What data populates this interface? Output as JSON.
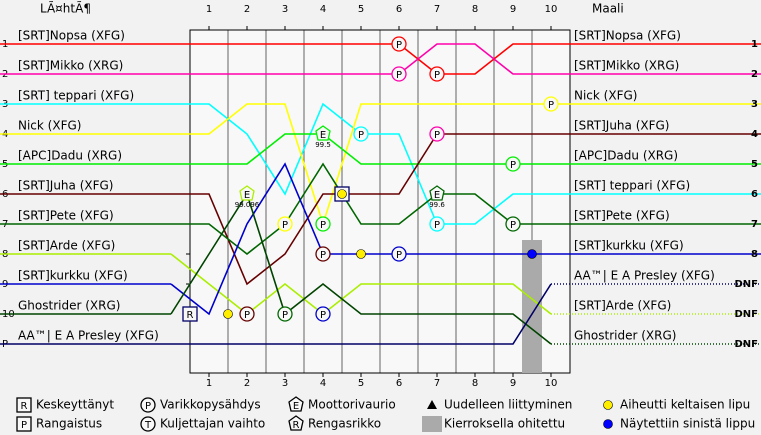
{
  "chart_data": {
    "type": "lap-chart",
    "start_header": "LÃ¤htÃ¶",
    "finish_header": "Maali",
    "xlim": [
      0.5,
      10.5
    ],
    "xticks": [
      1,
      2,
      3,
      4,
      5,
      6,
      7,
      8,
      9,
      10
    ],
    "ylim": [
      0.5,
      11.5
    ],
    "yticks": [
      1,
      2,
      3,
      4,
      5,
      6,
      7,
      8,
      9,
      10,
      {
        "value": 11,
        "label": "P"
      }
    ],
    "x": [
      0,
      1,
      2,
      3,
      4,
      5,
      6,
      7,
      8,
      9,
      10
    ],
    "series": [
      {
        "name": "[SRT]Nopsa (XFG)",
        "color": "#ff0000",
        "values": [
          1,
          1,
          1,
          1,
          1,
          1,
          1,
          2,
          2,
          1,
          1
        ]
      },
      {
        "name": "[SRT]Mikko (XRG)",
        "color": "#ff00aa",
        "values": [
          2,
          2,
          2,
          2,
          2,
          2,
          2,
          1,
          1,
          2,
          2
        ]
      },
      {
        "name": "[SRT] teppari (XFG)",
        "color": "#00ffff",
        "values": [
          3,
          3,
          4,
          6,
          3,
          4,
          4,
          7,
          7,
          6,
          6
        ]
      },
      {
        "name": "Nick (XFG)",
        "color": "#ffff00",
        "values": [
          4,
          4,
          3,
          3,
          7,
          3,
          3,
          3,
          3,
          3,
          3
        ]
      },
      {
        "name": "[APC]Dadu (XRG)",
        "color": "#00ee00",
        "values": [
          5,
          5,
          5,
          4,
          4,
          5,
          5,
          5,
          5,
          5,
          5
        ]
      },
      {
        "name": "[SRT]Juha (XFG)",
        "color": "#660000",
        "values": [
          6,
          6,
          9,
          8,
          6,
          6,
          6,
          4,
          4,
          4,
          4
        ]
      },
      {
        "name": "[SRT]Pete (XFG)",
        "color": "#006600",
        "values": [
          7,
          7,
          8,
          7,
          5,
          7,
          7,
          6,
          6,
          7,
          7
        ]
      },
      {
        "name": "[SRT]Arde (XFG)",
        "color": "#aaee00",
        "values": [
          8,
          9,
          10,
          9,
          10,
          9,
          9,
          9,
          9,
          9,
          10
        ]
      },
      {
        "name": "[SRT]kurkku (XFG)",
        "color": "#0000cc",
        "values": [
          9,
          10,
          7,
          5,
          8,
          8,
          8,
          8,
          8,
          8,
          8
        ]
      },
      {
        "name": "Ghostrider (XRG)",
        "color": "#004400",
        "values": [
          10,
          8,
          6,
          10,
          9,
          10,
          10,
          10,
          10,
          10,
          11
        ]
      },
      {
        "name": "AA™| E A Presley (XFG)",
        "color": "#000066",
        "values": [
          11,
          11,
          11,
          11,
          11,
          11,
          11,
          11,
          11,
          11,
          9
        ]
      }
    ],
    "finish_names": [
      "[SRT]Nopsa (XFG)",
      "[SRT]Mikko (XRG)",
      "Nick (XFG)",
      "[SRT]Juha (XFG)",
      "[APC]Dadu (XRG)",
      "[SRT] teppari (XFG)",
      "[SRT]Pete (XFG)",
      "[SRT]kurkku (XFG)",
      "AA™| E A Presley (XFG)",
      "[SRT]Arde (XFG)",
      "Ghostrider (XRG)"
    ],
    "finish_labels": [
      "1",
      "2",
      "3",
      "4",
      "5",
      "6",
      "7",
      "8",
      "DNF",
      "DNF",
      "DNF"
    ],
    "events": [
      {
        "symbol": "P",
        "shape": "circle",
        "lap": 6,
        "pos": 1,
        "color": "#ff0000"
      },
      {
        "symbol": "P",
        "shape": "circle",
        "lap": 6,
        "pos": 2,
        "color": "#ff00aa"
      },
      {
        "symbol": "P",
        "shape": "circle",
        "lap": 7,
        "pos": 2,
        "color": "#ff0000"
      },
      {
        "symbol": "P",
        "shape": "circle",
        "lap": 10,
        "pos": 3,
        "color": "#ffff00"
      },
      {
        "symbol": "P",
        "shape": "circle",
        "lap": 7,
        "pos": 4,
        "color": "#ff00aa"
      },
      {
        "symbol": "P",
        "shape": "circle",
        "lap": 5,
        "pos": 4,
        "color": "#00ffff"
      },
      {
        "symbol": "P",
        "shape": "circle",
        "lap": 9,
        "pos": 5,
        "color": "#00ee00"
      },
      {
        "symbol": "P",
        "shape": "circle",
        "lap": 7,
        "pos": 7,
        "color": "#00ffff"
      },
      {
        "symbol": "P",
        "shape": "circle",
        "lap": 9,
        "pos": 7,
        "color": "#006600"
      },
      {
        "symbol": "P",
        "shape": "circle",
        "lap": 3,
        "pos": 7,
        "color": "#ffff00"
      },
      {
        "symbol": "P",
        "shape": "circle",
        "lap": 4,
        "pos": 7,
        "color": "#00ee00"
      },
      {
        "symbol": "P",
        "shape": "circle",
        "lap": 4,
        "pos": 8,
        "color": "#660000"
      },
      {
        "symbol": "P",
        "shape": "circle",
        "lap": 6,
        "pos": 8,
        "color": "#0000cc"
      },
      {
        "symbol": "P",
        "shape": "circle",
        "lap": 2,
        "pos": 10,
        "color": "#660000"
      },
      {
        "symbol": "P",
        "shape": "circle",
        "lap": 3,
        "pos": 10,
        "color": "#006600"
      },
      {
        "symbol": "P",
        "shape": "circle",
        "lap": 4,
        "pos": 10,
        "color": "#0000cc"
      },
      {
        "symbol": "E",
        "shape": "pent",
        "lap": 4,
        "pos": 4,
        "color": "#00ee00",
        "label": "99.5"
      },
      {
        "symbol": "E",
        "shape": "pent",
        "lap": 7,
        "pos": 6,
        "color": "#006600",
        "label": "99.6"
      },
      {
        "symbol": "E",
        "shape": "pent",
        "lap": 2,
        "pos": 6,
        "color": "#aaee00",
        "label": "99.096"
      },
      {
        "symbol": "R",
        "shape": "square",
        "lap": 0.5,
        "pos": 10,
        "color": "#000066"
      },
      {
        "symbol": "P",
        "shape": "square",
        "lap": 4.5,
        "pos": 6,
        "color": "#000066"
      }
    ],
    "flags": [
      {
        "kind": "yellow",
        "lap": 1.5,
        "pos": 10,
        "color": "#ffee00"
      },
      {
        "kind": "yellow",
        "lap": 4.5,
        "pos": 6,
        "color": "#ffee00"
      },
      {
        "kind": "yellow",
        "lap": 5,
        "pos": 8,
        "color": "#ffee00"
      },
      {
        "kind": "blue",
        "lap": 9.5,
        "pos": 8,
        "color": "#0000ff"
      }
    ],
    "lapped": [
      {
        "lap": 9.5,
        "pos": 8
      }
    ],
    "legend": [
      {
        "icon": "R",
        "shape": "square",
        "text": "Keskeyttänyt"
      },
      {
        "icon": "P",
        "shape": "square",
        "text": "Rangaistus"
      },
      {
        "icon": "P",
        "shape": "circle",
        "text": "Varikkopysähdys"
      },
      {
        "icon": "T",
        "shape": "circle",
        "text": "Kuljettajan vaihto"
      },
      {
        "icon": "E",
        "shape": "pent",
        "text": "Moottorivaurio"
      },
      {
        "icon": "R",
        "shape": "pent",
        "text": "Rengasrikko"
      },
      {
        "shape": "triangle",
        "text": "Uudelleen liittyminen"
      },
      {
        "shape": "bar",
        "text": "Kierroksella ohitettu"
      },
      {
        "shape": "dot",
        "color": "#ffee00",
        "text": "Aiheutti keltaisen lipu"
      },
      {
        "shape": "dot",
        "color": "#0000ff",
        "text": "Näytettiin sinistä lippu"
      }
    ]
  }
}
